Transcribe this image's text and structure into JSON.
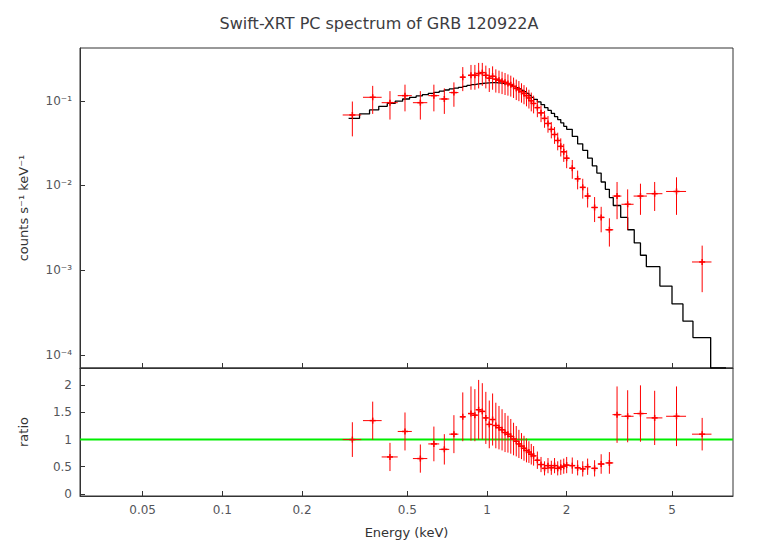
{
  "chart_data": [
    {
      "type": "line",
      "title": "Swift-XRT PC spectrum of GRB 120922A",
      "ylabel": "counts s⁻¹ keV⁻¹",
      "log": true,
      "grid": false,
      "tick_labels": "y",
      "xlim": [
        0.029,
        8.5
      ],
      "ylim": [
        7e-05,
        0.42
      ],
      "xticks": [
        0.05,
        0.1,
        0.2,
        0.5,
        1,
        2,
        5
      ],
      "yticks": [
        {
          "value": 0.0001,
          "label": "10⁻⁴"
        },
        {
          "value": 0.001,
          "label": "10⁻³"
        },
        {
          "value": 0.01,
          "label": "10⁻²"
        },
        {
          "value": 0.1,
          "label": "10⁻¹"
        }
      ],
      "series": [
        {
          "type": "step",
          "color": "#000000",
          "bins": [
            0.3,
            0.33,
            0.36,
            0.39,
            0.42,
            0.45,
            0.48,
            0.51,
            0.54,
            0.57,
            0.6,
            0.63,
            0.66,
            0.69,
            0.72,
            0.75,
            0.78,
            0.81,
            0.84,
            0.87,
            0.9,
            0.93,
            0.96,
            0.99,
            1.02,
            1.05,
            1.08,
            1.11,
            1.14,
            1.17,
            1.2,
            1.23,
            1.26,
            1.29,
            1.32,
            1.35,
            1.38,
            1.41,
            1.44,
            1.47,
            1.5,
            1.55,
            1.6,
            1.65,
            1.7,
            1.75,
            1.8,
            1.85,
            1.9,
            1.95,
            2.0,
            2.1,
            2.2,
            2.3,
            2.4,
            2.5,
            2.6,
            2.7,
            2.8,
            2.9,
            3.0,
            3.2,
            3.4,
            3.6,
            3.8,
            4.0,
            4.5,
            5.0,
            5.5,
            6.0,
            7.0,
            8.0
          ],
          "values": [
            0.062,
            0.07,
            0.078,
            0.086,
            0.093,
            0.099,
            0.105,
            0.11,
            0.114,
            0.118,
            0.122,
            0.126,
            0.13,
            0.134,
            0.138,
            0.141,
            0.144,
            0.148,
            0.152,
            0.155,
            0.158,
            0.16,
            0.162,
            0.163,
            0.164,
            0.164,
            0.163,
            0.162,
            0.16,
            0.158,
            0.155,
            0.151,
            0.147,
            0.143,
            0.138,
            0.133,
            0.128,
            0.122,
            0.116,
            0.11,
            0.104,
            0.097,
            0.09,
            0.083,
            0.077,
            0.071,
            0.065,
            0.06,
            0.055,
            0.05,
            0.046,
            0.038,
            0.031,
            0.026,
            0.021,
            0.017,
            0.014,
            0.011,
            0.009,
            0.0072,
            0.0058,
            0.0042,
            0.003,
            0.0021,
            0.0015,
            0.0011,
            0.00065,
            0.0004,
            0.00025,
            0.00016,
            7e-05
          ]
        },
        {
          "type": "scatter",
          "marker": "+",
          "color": "#ff0000",
          "x": [
            0.31,
            0.37,
            0.43,
            0.49,
            0.56,
            0.63,
            0.69,
            0.75,
            0.81,
            0.87,
            0.9,
            0.93,
            0.96,
            0.99,
            1.02,
            1.05,
            1.08,
            1.11,
            1.14,
            1.17,
            1.2,
            1.23,
            1.26,
            1.29,
            1.32,
            1.35,
            1.38,
            1.41,
            1.44,
            1.47,
            1.5,
            1.55,
            1.6,
            1.65,
            1.7,
            1.75,
            1.8,
            1.85,
            1.9,
            1.95,
            2.0,
            2.1,
            2.2,
            2.3,
            2.4,
            2.55,
            2.7,
            2.9,
            3.1,
            3.4,
            3.8,
            4.3,
            5.2,
            6.5
          ],
          "values": [
            0.068,
            0.11,
            0.095,
            0.115,
            0.095,
            0.115,
            0.105,
            0.125,
            0.19,
            0.2,
            0.2,
            0.21,
            0.215,
            0.2,
            0.185,
            0.195,
            0.18,
            0.175,
            0.17,
            0.165,
            0.16,
            0.155,
            0.148,
            0.14,
            0.135,
            0.128,
            0.122,
            0.115,
            0.108,
            0.1,
            0.093,
            0.083,
            0.072,
            0.062,
            0.054,
            0.046,
            0.04,
            0.034,
            0.029,
            0.025,
            0.021,
            0.016,
            0.012,
            0.0095,
            0.0075,
            0.0055,
            0.0042,
            0.003,
            0.0075,
            0.006,
            0.0075,
            0.008,
            0.0085,
            0.00125
          ],
          "x_err": [
            0.025,
            0.03,
            0.03,
            0.03,
            0.035,
            0.03,
            0.03,
            0.03,
            0.015,
            0.015,
            0.015,
            0.015,
            0.015,
            0.015,
            0.015,
            0.015,
            0.015,
            0.015,
            0.015,
            0.015,
            0.015,
            0.015,
            0.015,
            0.015,
            0.015,
            0.015,
            0.015,
            0.015,
            0.015,
            0.015,
            0.025,
            0.025,
            0.025,
            0.025,
            0.025,
            0.025,
            0.025,
            0.025,
            0.025,
            0.025,
            0.04,
            0.05,
            0.05,
            0.05,
            0.06,
            0.07,
            0.08,
            0.1,
            0.12,
            0.18,
            0.22,
            0.3,
            0.45,
            0.55
          ],
          "y_err_lo": [
            0.03,
            0.04,
            0.035,
            0.04,
            0.035,
            0.04,
            0.035,
            0.04,
            0.06,
            0.065,
            0.065,
            0.07,
            0.065,
            0.06,
            0.058,
            0.06,
            0.055,
            0.052,
            0.05,
            0.048,
            0.045,
            0.043,
            0.04,
            0.038,
            0.036,
            0.033,
            0.031,
            0.029,
            0.027,
            0.025,
            0.022,
            0.019,
            0.016,
            0.014,
            0.012,
            0.01,
            0.009,
            0.008,
            0.007,
            0.006,
            0.005,
            0.004,
            0.003,
            0.0025,
            0.002,
            0.0018,
            0.0014,
            0.0011,
            0.0035,
            0.003,
            0.003,
            0.003,
            0.004,
            0.0007
          ],
          "y_err_hi": [
            0.03,
            0.04,
            0.035,
            0.04,
            0.035,
            0.04,
            0.035,
            0.04,
            0.06,
            0.065,
            0.065,
            0.07,
            0.065,
            0.06,
            0.058,
            0.06,
            0.055,
            0.052,
            0.05,
            0.048,
            0.045,
            0.043,
            0.04,
            0.038,
            0.036,
            0.033,
            0.031,
            0.029,
            0.027,
            0.025,
            0.022,
            0.019,
            0.016,
            0.014,
            0.012,
            0.01,
            0.009,
            0.008,
            0.007,
            0.006,
            0.005,
            0.004,
            0.003,
            0.0025,
            0.002,
            0.0018,
            0.0014,
            0.0011,
            0.0035,
            0.003,
            0.003,
            0.003,
            0.004,
            0.0007
          ]
        }
      ]
    },
    {
      "type": "scatter",
      "xlabel": "Energy (keV)",
      "ylabel": "ratio",
      "log": "x",
      "grid": false,
      "xlim": [
        0.029,
        8.5
      ],
      "ylim": [
        -0.04,
        2.32
      ],
      "xticks": [
        0.05,
        0.1,
        0.2,
        0.5,
        1,
        2,
        5
      ],
      "yticks": [
        0,
        0.5,
        1,
        1.5,
        2
      ],
      "reference_lines": [
        {
          "value": 1,
          "color": "#00ee00"
        }
      ],
      "series": [
        {
          "type": "scatter",
          "marker": "+",
          "color": "#ff0000",
          "x": [
            0.31,
            0.37,
            0.43,
            0.49,
            0.56,
            0.63,
            0.69,
            0.75,
            0.81,
            0.87,
            0.9,
            0.93,
            0.96,
            0.99,
            1.02,
            1.05,
            1.08,
            1.11,
            1.14,
            1.17,
            1.2,
            1.23,
            1.26,
            1.29,
            1.32,
            1.35,
            1.38,
            1.41,
            1.44,
            1.47,
            1.5,
            1.55,
            1.6,
            1.65,
            1.7,
            1.75,
            1.8,
            1.85,
            1.9,
            1.95,
            2.0,
            2.1,
            2.2,
            2.3,
            2.4,
            2.55,
            2.7,
            2.9,
            3.1,
            3.4,
            3.8,
            4.3,
            5.2,
            6.5
          ],
          "values": [
            1.0,
            1.35,
            0.68,
            1.15,
            0.65,
            0.92,
            0.82,
            1.1,
            1.42,
            1.48,
            1.45,
            1.55,
            1.52,
            1.4,
            1.28,
            1.37,
            1.26,
            1.22,
            1.18,
            1.13,
            1.1,
            1.06,
            1.01,
            0.97,
            0.92,
            0.88,
            0.84,
            0.8,
            0.77,
            0.73,
            0.7,
            0.62,
            0.54,
            0.47,
            0.52,
            0.48,
            0.52,
            0.47,
            0.49,
            0.51,
            0.53,
            0.52,
            0.48,
            0.46,
            0.5,
            0.47,
            0.55,
            0.57,
            1.46,
            1.43,
            1.48,
            1.4,
            1.43,
            1.1
          ],
          "x_err": [
            0.025,
            0.03,
            0.03,
            0.03,
            0.035,
            0.03,
            0.03,
            0.03,
            0.015,
            0.015,
            0.015,
            0.015,
            0.015,
            0.015,
            0.015,
            0.015,
            0.015,
            0.015,
            0.015,
            0.015,
            0.015,
            0.015,
            0.015,
            0.015,
            0.015,
            0.015,
            0.015,
            0.015,
            0.015,
            0.015,
            0.025,
            0.025,
            0.025,
            0.025,
            0.025,
            0.025,
            0.025,
            0.025,
            0.025,
            0.025,
            0.04,
            0.05,
            0.05,
            0.05,
            0.06,
            0.07,
            0.08,
            0.1,
            0.12,
            0.18,
            0.22,
            0.3,
            0.45,
            0.55
          ],
          "y_err_lo": [
            0.32,
            0.35,
            0.26,
            0.35,
            0.26,
            0.32,
            0.28,
            0.35,
            0.45,
            0.5,
            0.48,
            0.55,
            0.52,
            0.48,
            0.44,
            0.48,
            0.42,
            0.4,
            0.38,
            0.36,
            0.34,
            0.32,
            0.3,
            0.28,
            0.26,
            0.24,
            0.23,
            0.22,
            0.2,
            0.19,
            0.18,
            0.16,
            0.14,
            0.13,
            0.14,
            0.13,
            0.14,
            0.13,
            0.14,
            0.14,
            0.15,
            0.15,
            0.14,
            0.14,
            0.15,
            0.15,
            0.18,
            0.2,
            0.52,
            0.48,
            0.52,
            0.5,
            0.55,
            0.3
          ],
          "y_err_hi": [
            0.32,
            0.35,
            0.26,
            0.35,
            0.26,
            0.32,
            0.28,
            0.35,
            0.45,
            0.5,
            0.48,
            0.55,
            0.52,
            0.48,
            0.44,
            0.48,
            0.42,
            0.4,
            0.38,
            0.36,
            0.34,
            0.32,
            0.3,
            0.28,
            0.26,
            0.24,
            0.23,
            0.22,
            0.2,
            0.19,
            0.18,
            0.16,
            0.14,
            0.13,
            0.14,
            0.13,
            0.14,
            0.13,
            0.14,
            0.14,
            0.15,
            0.15,
            0.14,
            0.14,
            0.15,
            0.15,
            0.18,
            0.2,
            0.52,
            0.48,
            0.52,
            0.5,
            0.55,
            0.3
          ]
        }
      ]
    }
  ]
}
